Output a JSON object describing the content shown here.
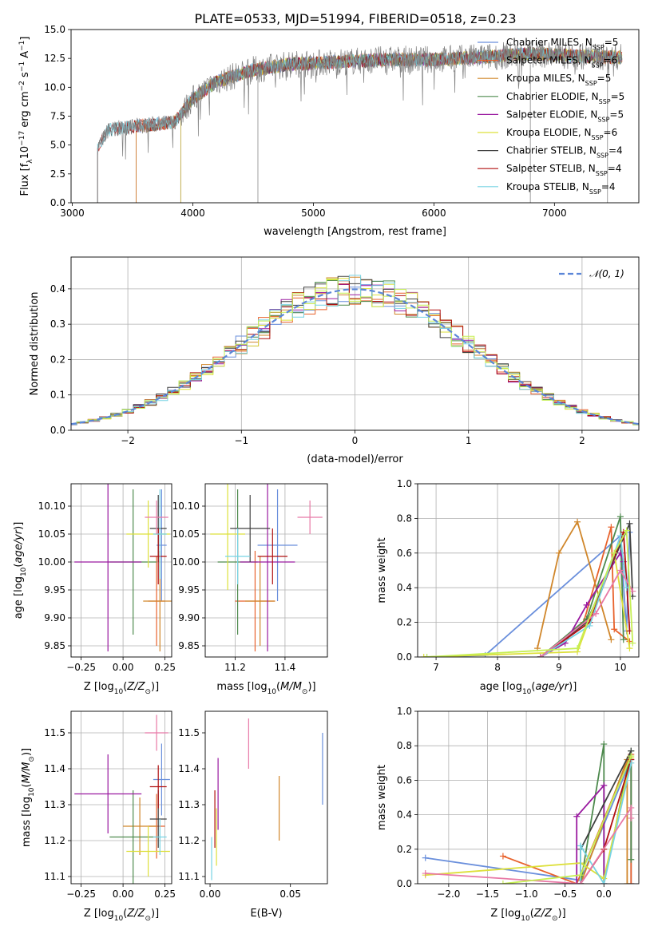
{
  "figure": {
    "title": "PLATE=0533, MJD=51994, FIBERID=0518, z=0.23"
  },
  "colors": {
    "Chabrier MILES": "#6a8fdc",
    "Salpeter MILES": "#e8622c",
    "Kroupa MILES": "#d0862a",
    "Chabrier ELODIE": "#4e8a4e",
    "Salpeter ELODIE": "#9a1aa0",
    "Kroupa ELODIE": "#dde03a",
    "Chabrier STELIB": "#404040",
    "Salpeter STELIB": "#b01010",
    "Kroupa STELIB": "#77d3e3",
    "extra_pink": "#e879a6",
    "extra_lime": "#c6ef55",
    "gauss": "#5b86d8",
    "grid": "#b0b0b0"
  },
  "chart_data": [
    {
      "id": "spectrum",
      "type": "line",
      "title": "PLATE=0533, MJD=51994, FIBERID=0518, z=0.23",
      "xlabel": "wavelength [Angstrom, rest frame]",
      "ylabel": "Flux [f_λ 10^-17 erg cm^-2 s^-1 A^-1]",
      "xlim": [
        2990,
        7700
      ],
      "ylim": [
        0,
        15
      ],
      "xticks": [
        "3000",
        "4000",
        "5000",
        "6000",
        "7000"
      ],
      "yticks": [
        "0.0",
        "2.5",
        "5.0",
        "7.5",
        "10.0",
        "12.5",
        "15.0"
      ],
      "grid": false,
      "legend_position": "upper right",
      "legend": [
        {
          "name": "Chabrier MILES, N",
          "sub": "SSP",
          "suffix": "=5",
          "color_key": "Chabrier MILES"
        },
        {
          "name": "Salpeter MILES, N",
          "sub": "SSP",
          "suffix": "=6",
          "color_key": "Salpeter MILES"
        },
        {
          "name": "Kroupa MILES, N",
          "sub": "SSP",
          "suffix": "=5",
          "color_key": "Kroupa MILES"
        },
        {
          "name": "Chabrier ELODIE, N",
          "sub": "SSP",
          "suffix": "=5",
          "color_key": "Chabrier ELODIE"
        },
        {
          "name": "Salpeter ELODIE, N",
          "sub": "SSP",
          "suffix": "=5",
          "color_key": "Salpeter ELODIE"
        },
        {
          "name": "Kroupa ELODIE, N",
          "sub": "SSP",
          "suffix": "=6",
          "color_key": "Kroupa ELODIE"
        },
        {
          "name": "Chabrier STELIB, N",
          "sub": "SSP",
          "suffix": "=4",
          "color_key": "Chabrier STELIB"
        },
        {
          "name": "Salpeter STELIB, N",
          "sub": "SSP",
          "suffix": "=4",
          "color_key": "Salpeter STELIB"
        },
        {
          "name": "Kroupa STELIB, N",
          "sub": "SSP",
          "suffix": "=4",
          "color_key": "Kroupa STELIB"
        }
      ],
      "model_starts": [
        {
          "series": "Chabrier MILES",
          "start": 3530
        },
        {
          "series": "Salpeter MILES",
          "start": 3530
        },
        {
          "series": "Kroupa MILES",
          "start": 3530
        },
        {
          "series": "Chabrier ELODIE",
          "start": 3900
        },
        {
          "series": "Salpeter ELODIE",
          "start": 3900
        },
        {
          "series": "Kroupa ELODIE",
          "start": 3900
        },
        {
          "series": "Chabrier STELIB",
          "start": 3210
        },
        {
          "series": "Salpeter STELIB",
          "start": 3210
        },
        {
          "series": "Kroupa STELIB",
          "start": 3210
        }
      ],
      "continuum": {
        "x": [
          3210,
          3300,
          3500,
          3700,
          3850,
          4000,
          4200,
          4500,
          4800,
          5200,
          5600,
          6000,
          6400,
          6800,
          7200,
          7500
        ],
        "y": [
          4.8,
          6.3,
          6.6,
          6.8,
          7.0,
          9.0,
          10.5,
          11.5,
          12.0,
          12.2,
          12.4,
          12.4,
          12.6,
          12.9,
          12.7,
          12.6
        ]
      }
    },
    {
      "id": "residuals",
      "type": "histogram",
      "xlabel": "(data-model)/error",
      "ylabel": "Normed distribution",
      "xlim": [
        -2.5,
        2.5
      ],
      "ylim": [
        0,
        0.49
      ],
      "xticks": [
        "−2",
        "−1",
        "0",
        "1",
        "2"
      ],
      "yticks": [
        "0.0",
        "0.1",
        "0.2",
        "0.3",
        "0.4"
      ],
      "grid": true,
      "bin_width": 0.1,
      "legend": [
        {
          "name": "𝒩(0, 1)",
          "color_key": "gauss",
          "style": "dashed"
        }
      ],
      "gaussian": {
        "mean": 0,
        "sigma": 1
      },
      "series_colors": [
        "Chabrier MILES",
        "Salpeter MILES",
        "Kroupa MILES",
        "Chabrier ELODIE",
        "Salpeter ELODIE",
        "Kroupa ELODIE",
        "Chabrier STELIB",
        "Salpeter STELIB",
        "Kroupa STELIB",
        "extra_lime"
      ]
    },
    {
      "id": "age_vs_Z",
      "type": "errorbar",
      "xlabel": "Z [log10(Z/Z⊙)]",
      "ylabel": "age [log10(age/yr)]",
      "xlim": [
        -0.31,
        0.29
      ],
      "ylim": [
        9.83,
        10.14
      ],
      "xticks": [
        "−0.25",
        "0.00",
        "0.25"
      ],
      "yticks": [
        "9.85",
        "9.90",
        "9.95",
        "10.00",
        "10.05",
        "10.10"
      ],
      "grid": true,
      "points": [
        {
          "x": 0.23,
          "y": 10.03,
          "xerr": 0.03,
          "yerr": 0.1,
          "color_key": "Chabrier MILES"
        },
        {
          "x": 0.2,
          "y": 9.93,
          "xerr": 0.05,
          "yerr": 0.08,
          "color_key": "Salpeter MILES"
        },
        {
          "x": 0.22,
          "y": 9.93,
          "xerr": 0.1,
          "yerr": 0.09,
          "color_key": "Kroupa MILES"
        },
        {
          "x": 0.06,
          "y": 10.0,
          "xerr": 0.14,
          "yerr": 0.13,
          "color_key": "Chabrier ELODIE"
        },
        {
          "x": -0.09,
          "y": 10.0,
          "xerr": 0.2,
          "yerr": 0.16,
          "color_key": "Salpeter ELODIE"
        },
        {
          "x": 0.15,
          "y": 10.05,
          "xerr": 0.13,
          "yerr": 0.06,
          "color_key": "Kroupa ELODIE"
        },
        {
          "x": 0.21,
          "y": 10.06,
          "xerr": 0.05,
          "yerr": 0.06,
          "color_key": "Chabrier STELIB"
        },
        {
          "x": 0.21,
          "y": 10.01,
          "xerr": 0.05,
          "yerr": 0.05,
          "color_key": "Salpeter STELIB"
        },
        {
          "x": 0.22,
          "y": 10.05,
          "xerr": 0.04,
          "yerr": 0.08,
          "color_key": "Kroupa STELIB"
        },
        {
          "x": 0.2,
          "y": 10.08,
          "xerr": 0.07,
          "yerr": 0.03,
          "color_key": "extra_pink"
        }
      ]
    },
    {
      "id": "age_vs_mass",
      "type": "errorbar",
      "xlabel": "mass [log10(M/M⊙)]",
      "ylabel": "",
      "xlim": [
        11.08,
        11.57
      ],
      "ylim": [
        9.83,
        10.14
      ],
      "xticks": [
        "11.2",
        "11.4"
      ],
      "yticks": [
        "9.85",
        "9.90",
        "9.95",
        "10.00",
        "10.05",
        "10.10"
      ],
      "grid": true,
      "points": [
        {
          "x": 11.37,
          "y": 10.03,
          "xerr": 0.08,
          "yerr": 0.1,
          "color_key": "Chabrier MILES"
        },
        {
          "x": 11.28,
          "y": 9.93,
          "xerr": 0.08,
          "yerr": 0.09,
          "color_key": "Salpeter MILES"
        },
        {
          "x": 11.3,
          "y": 9.93,
          "xerr": 0.06,
          "yerr": 0.08,
          "color_key": "Kroupa MILES"
        },
        {
          "x": 11.21,
          "y": 10.0,
          "xerr": 0.08,
          "yerr": 0.13,
          "color_key": "Chabrier ELODIE"
        },
        {
          "x": 11.33,
          "y": 10.0,
          "xerr": 0.11,
          "yerr": 0.16,
          "color_key": "Salpeter ELODIE"
        },
        {
          "x": 11.17,
          "y": 10.05,
          "xerr": 0.07,
          "yerr": 0.1,
          "color_key": "Kroupa ELODIE"
        },
        {
          "x": 11.26,
          "y": 10.06,
          "xerr": 0.08,
          "yerr": 0.06,
          "color_key": "Chabrier STELIB"
        },
        {
          "x": 11.35,
          "y": 10.01,
          "xerr": 0.06,
          "yerr": 0.05,
          "color_key": "Salpeter STELIB"
        },
        {
          "x": 11.21,
          "y": 10.01,
          "xerr": 0.05,
          "yerr": 0.05,
          "color_key": "Kroupa STELIB"
        },
        {
          "x": 11.5,
          "y": 10.08,
          "xerr": 0.05,
          "yerr": 0.03,
          "color_key": "extra_pink"
        }
      ]
    },
    {
      "id": "weight_vs_age",
      "type": "line",
      "xlabel": "age [log10(age/yr)]",
      "ylabel": "mass weight",
      "xlim": [
        6.7,
        10.3
      ],
      "ylim": [
        0,
        1
      ],
      "xticks": [
        "7",
        "8",
        "9",
        "10"
      ],
      "yticks": [
        "0.0",
        "0.2",
        "0.4",
        "0.6",
        "0.8",
        "1.0"
      ],
      "grid": true,
      "series": [
        {
          "color_key": "Chabrier MILES",
          "x": [
            6.85,
            7.8,
            10.0,
            10.1,
            10.15
          ],
          "y": [
            0.0,
            0.01,
            0.7,
            0.15,
            0.72
          ]
        },
        {
          "color_key": "Salpeter MILES",
          "x": [
            8.7,
            9.4,
            9.85,
            9.9,
            10.15
          ],
          "y": [
            0.0,
            0.2,
            0.75,
            0.16,
            0.09
          ]
        },
        {
          "color_key": "Kroupa MILES",
          "x": [
            8.65,
            9.0,
            9.3,
            9.85
          ],
          "y": [
            0.05,
            0.6,
            0.78,
            0.1
          ]
        },
        {
          "color_key": "Chabrier ELODIE",
          "x": [
            8.7,
            9.45,
            10.0,
            10.05
          ],
          "y": [
            0.0,
            0.22,
            0.81,
            0.1
          ]
        },
        {
          "color_key": "Salpeter ELODIE",
          "x": [
            8.7,
            9.1,
            9.45,
            10.0,
            10.05
          ],
          "y": [
            0.0,
            0.08,
            0.3,
            0.6,
            0.55
          ]
        },
        {
          "color_key": "Kroupa ELODIE",
          "x": [
            6.8,
            9.3,
            9.9,
            10.15
          ],
          "y": [
            0.0,
            0.03,
            0.6,
            0.05
          ]
        },
        {
          "color_key": "Chabrier STELIB",
          "x": [
            8.7,
            9.45,
            10.15,
            10.2
          ],
          "y": [
            0.0,
            0.2,
            0.77,
            0.35
          ]
        },
        {
          "color_key": "Salpeter STELIB",
          "x": [
            8.7,
            9.5,
            10.05,
            10.15
          ],
          "y": [
            0.0,
            0.2,
            0.72,
            0.15
          ]
        },
        {
          "color_key": "Kroupa STELIB",
          "x": [
            8.7,
            9.5,
            10.0,
            10.1
          ],
          "y": [
            0.0,
            0.18,
            0.7,
            0.4
          ]
        },
        {
          "color_key": "extra_pink",
          "x": [
            8.7,
            9.6,
            10.0,
            10.2
          ],
          "y": [
            0.0,
            0.25,
            0.5,
            0.38
          ]
        },
        {
          "color_key": "extra_lime",
          "x": [
            6.85,
            9.3,
            9.9,
            10.1,
            10.2
          ],
          "y": [
            0.0,
            0.05,
            0.6,
            0.73,
            0.08
          ]
        }
      ]
    },
    {
      "id": "mass_vs_Z",
      "type": "errorbar",
      "xlabel": "Z [log10(Z/Z⊙)]",
      "ylabel": "mass [log10(M/M⊙)]",
      "xlim": [
        -0.31,
        0.29
      ],
      "ylim": [
        11.08,
        11.56
      ],
      "xticks": [
        "−0.25",
        "0.00",
        "0.25"
      ],
      "yticks": [
        "11.1",
        "11.2",
        "11.3",
        "11.4",
        "11.5"
      ],
      "grid": true,
      "points": [
        {
          "x": 0.23,
          "y": 11.37,
          "xerr": 0.05,
          "yerr": 0.1,
          "color_key": "Chabrier MILES"
        },
        {
          "x": 0.2,
          "y": 11.24,
          "xerr": 0.05,
          "yerr": 0.09,
          "color_key": "Salpeter MILES"
        },
        {
          "x": 0.1,
          "y": 11.24,
          "xerr": 0.1,
          "yerr": 0.08,
          "color_key": "Kroupa MILES"
        },
        {
          "x": 0.06,
          "y": 11.21,
          "xerr": 0.14,
          "yerr": 0.13,
          "color_key": "Chabrier ELODIE"
        },
        {
          "x": -0.09,
          "y": 11.33,
          "xerr": 0.2,
          "yerr": 0.11,
          "color_key": "Salpeter ELODIE"
        },
        {
          "x": 0.15,
          "y": 11.17,
          "xerr": 0.13,
          "yerr": 0.07,
          "color_key": "Kroupa ELODIE"
        },
        {
          "x": 0.21,
          "y": 11.26,
          "xerr": 0.05,
          "yerr": 0.08,
          "color_key": "Chabrier STELIB"
        },
        {
          "x": 0.21,
          "y": 11.35,
          "xerr": 0.05,
          "yerr": 0.06,
          "color_key": "Salpeter STELIB"
        },
        {
          "x": 0.22,
          "y": 11.21,
          "xerr": 0.04,
          "yerr": 0.05,
          "color_key": "Kroupa STELIB"
        },
        {
          "x": 0.2,
          "y": 11.5,
          "xerr": 0.07,
          "yerr": 0.05,
          "color_key": "extra_pink"
        }
      ]
    },
    {
      "id": "mass_vs_ebv",
      "type": "errorbar",
      "xlabel": "E(B-V)",
      "ylabel": "",
      "xlim": [
        -0.003,
        0.073
      ],
      "ylim": [
        11.08,
        11.56
      ],
      "xticks": [
        "0.00",
        "0.05"
      ],
      "yticks": [
        "11.1",
        "11.2",
        "11.3",
        "11.4",
        "11.5"
      ],
      "grid": false,
      "points": [
        {
          "x": 0.07,
          "y": 11.4,
          "xerr": 0,
          "yerr": 0.1,
          "color_key": "Chabrier MILES"
        },
        {
          "x": 0.043,
          "y": 11.29,
          "xerr": 0,
          "yerr": 0.09,
          "color_key": "Kroupa MILES"
        },
        {
          "x": 0.024,
          "y": 11.47,
          "xerr": 0,
          "yerr": 0.07,
          "color_key": "extra_pink"
        },
        {
          "x": 0.005,
          "y": 11.33,
          "xerr": 0,
          "yerr": 0.1,
          "color_key": "Salpeter ELODIE"
        },
        {
          "x": 0.003,
          "y": 11.26,
          "xerr": 0,
          "yerr": 0.08,
          "color_key": "Salpeter STELIB"
        },
        {
          "x": 0.004,
          "y": 11.21,
          "xerr": 0,
          "yerr": 0.08,
          "color_key": "Kroupa ELODIE"
        },
        {
          "x": 0.001,
          "y": 11.15,
          "xerr": 0,
          "yerr": 0.06,
          "color_key": "Kroupa STELIB"
        }
      ]
    },
    {
      "id": "weight_vs_Z",
      "type": "line",
      "xlabel": "Z [log10(Z/Z⊙)]",
      "ylabel": "mass weight",
      "xlim": [
        -2.4,
        0.45
      ],
      "ylim": [
        0,
        1
      ],
      "xticks": [
        "−2.0",
        "−1.5",
        "−1.0",
        "−0.5",
        "0.0"
      ],
      "yticks": [
        "0.0",
        "0.2",
        "0.4",
        "0.6",
        "0.8",
        "1.0"
      ],
      "grid": true,
      "series": [
        {
          "color_key": "Chabrier MILES",
          "x": [
            -2.3,
            -0.3,
            0.35,
            0.35
          ],
          "y": [
            0.15,
            0.02,
            0.72,
            0.0
          ]
        },
        {
          "color_key": "Salpeter MILES",
          "x": [
            -1.3,
            -0.35,
            0.35,
            0.35
          ],
          "y": [
            0.16,
            0.0,
            0.75,
            0.0
          ]
        },
        {
          "color_key": "Kroupa MILES",
          "x": [
            -0.3,
            0.3,
            0.3
          ],
          "y": [
            0.0,
            0.72,
            0.0
          ]
        },
        {
          "color_key": "Chabrier ELODIE",
          "x": [
            -0.3,
            0.0,
            0.0,
            0.35,
            0.35
          ],
          "y": [
            0.0,
            0.81,
            0.0,
            0.77,
            0.14
          ]
        },
        {
          "color_key": "Salpeter ELODIE",
          "x": [
            -0.35,
            -0.35,
            0.0,
            0.0
          ],
          "y": [
            0.0,
            0.39,
            0.57,
            0.0
          ]
        },
        {
          "color_key": "Kroupa ELODIE",
          "x": [
            -2.3,
            -0.3,
            0.0,
            0.35
          ],
          "y": [
            0.05,
            0.12,
            0.03,
            0.73
          ]
        },
        {
          "color_key": "Chabrier STELIB",
          "x": [
            -0.3,
            -0.3,
            0.35
          ],
          "y": [
            0.0,
            0.2,
            0.77
          ]
        },
        {
          "color_key": "Salpeter STELIB",
          "x": [
            -0.3,
            0.0,
            0.35
          ],
          "y": [
            0.0,
            0.2,
            0.72
          ]
        },
        {
          "color_key": "Kroupa STELIB",
          "x": [
            -0.3,
            -0.3,
            0.0,
            0.35
          ],
          "y": [
            0.0,
            0.22,
            0.0,
            0.7
          ]
        },
        {
          "color_key": "extra_pink",
          "x": [
            -2.3,
            -0.3,
            0.35,
            0.35
          ],
          "y": [
            0.06,
            0.0,
            0.44,
            0.38
          ]
        },
        {
          "color_key": "extra_lime",
          "x": [
            -1.3,
            -0.3,
            0.35
          ],
          "y": [
            0.0,
            0.05,
            0.74
          ]
        }
      ]
    }
  ]
}
